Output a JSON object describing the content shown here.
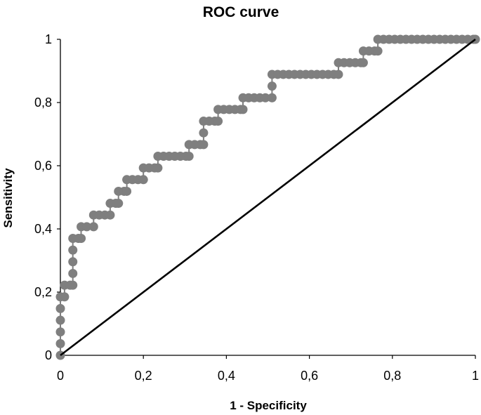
{
  "colors": {
    "roc": "#7f7f7f",
    "reference": "#000000",
    "axis": "#000000",
    "text": "#000000"
  },
  "chart_data": {
    "type": "line",
    "title": "ROC curve",
    "xlabel": "1 - Specificity",
    "ylabel": "Sensitivity",
    "xlim": [
      0,
      1
    ],
    "ylim": [
      0,
      1
    ],
    "grid": false,
    "legend": "none",
    "xticks": [
      0,
      0.2,
      0.4,
      0.6,
      0.8,
      1
    ],
    "xtick_labels": [
      "0",
      "0,2",
      "0,4",
      "0,6",
      "0,8",
      "1"
    ],
    "yticks": [
      0,
      0.2,
      0.4,
      0.6,
      0.8,
      1
    ],
    "ytick_labels": [
      "0",
      "0,2",
      "0,4",
      "0,6",
      "0,8",
      "1"
    ],
    "series": [
      {
        "name": "ROC",
        "step": true,
        "steps": [
          {
            "x": 0.0,
            "y": 0.0
          },
          {
            "x": 0.0,
            "y": 0.037
          },
          {
            "x": 0.0,
            "y": 0.074
          },
          {
            "x": 0.0,
            "y": 0.111
          },
          {
            "x": 0.0,
            "y": 0.148
          },
          {
            "x": 0.0,
            "y": 0.185
          },
          {
            "x": 0.01,
            "y": 0.185
          },
          {
            "x": 0.01,
            "y": 0.222
          },
          {
            "x": 0.03,
            "y": 0.222
          },
          {
            "x": 0.03,
            "y": 0.259
          },
          {
            "x": 0.03,
            "y": 0.296
          },
          {
            "x": 0.03,
            "y": 0.333
          },
          {
            "x": 0.03,
            "y": 0.37
          },
          {
            "x": 0.05,
            "y": 0.37
          },
          {
            "x": 0.05,
            "y": 0.407
          },
          {
            "x": 0.08,
            "y": 0.407
          },
          {
            "x": 0.08,
            "y": 0.444
          },
          {
            "x": 0.12,
            "y": 0.444
          },
          {
            "x": 0.12,
            "y": 0.481
          },
          {
            "x": 0.14,
            "y": 0.481
          },
          {
            "x": 0.14,
            "y": 0.519
          },
          {
            "x": 0.16,
            "y": 0.519
          },
          {
            "x": 0.16,
            "y": 0.556
          },
          {
            "x": 0.2,
            "y": 0.556
          },
          {
            "x": 0.2,
            "y": 0.593
          },
          {
            "x": 0.235,
            "y": 0.593
          },
          {
            "x": 0.235,
            "y": 0.63
          },
          {
            "x": 0.31,
            "y": 0.63
          },
          {
            "x": 0.31,
            "y": 0.667
          },
          {
            "x": 0.345,
            "y": 0.667
          },
          {
            "x": 0.345,
            "y": 0.704
          },
          {
            "x": 0.345,
            "y": 0.741
          },
          {
            "x": 0.38,
            "y": 0.741
          },
          {
            "x": 0.38,
            "y": 0.778
          },
          {
            "x": 0.44,
            "y": 0.778
          },
          {
            "x": 0.44,
            "y": 0.815
          },
          {
            "x": 0.51,
            "y": 0.815
          },
          {
            "x": 0.51,
            "y": 0.852
          },
          {
            "x": 0.51,
            "y": 0.889
          },
          {
            "x": 0.67,
            "y": 0.889
          },
          {
            "x": 0.67,
            "y": 0.926
          },
          {
            "x": 0.73,
            "y": 0.926
          },
          {
            "x": 0.73,
            "y": 0.963
          },
          {
            "x": 0.765,
            "y": 0.963
          },
          {
            "x": 0.765,
            "y": 1.0
          },
          {
            "x": 1.0,
            "y": 1.0
          }
        ]
      },
      {
        "name": "Reference",
        "x": [
          0,
          1
        ],
        "y": [
          0,
          1
        ]
      }
    ]
  }
}
